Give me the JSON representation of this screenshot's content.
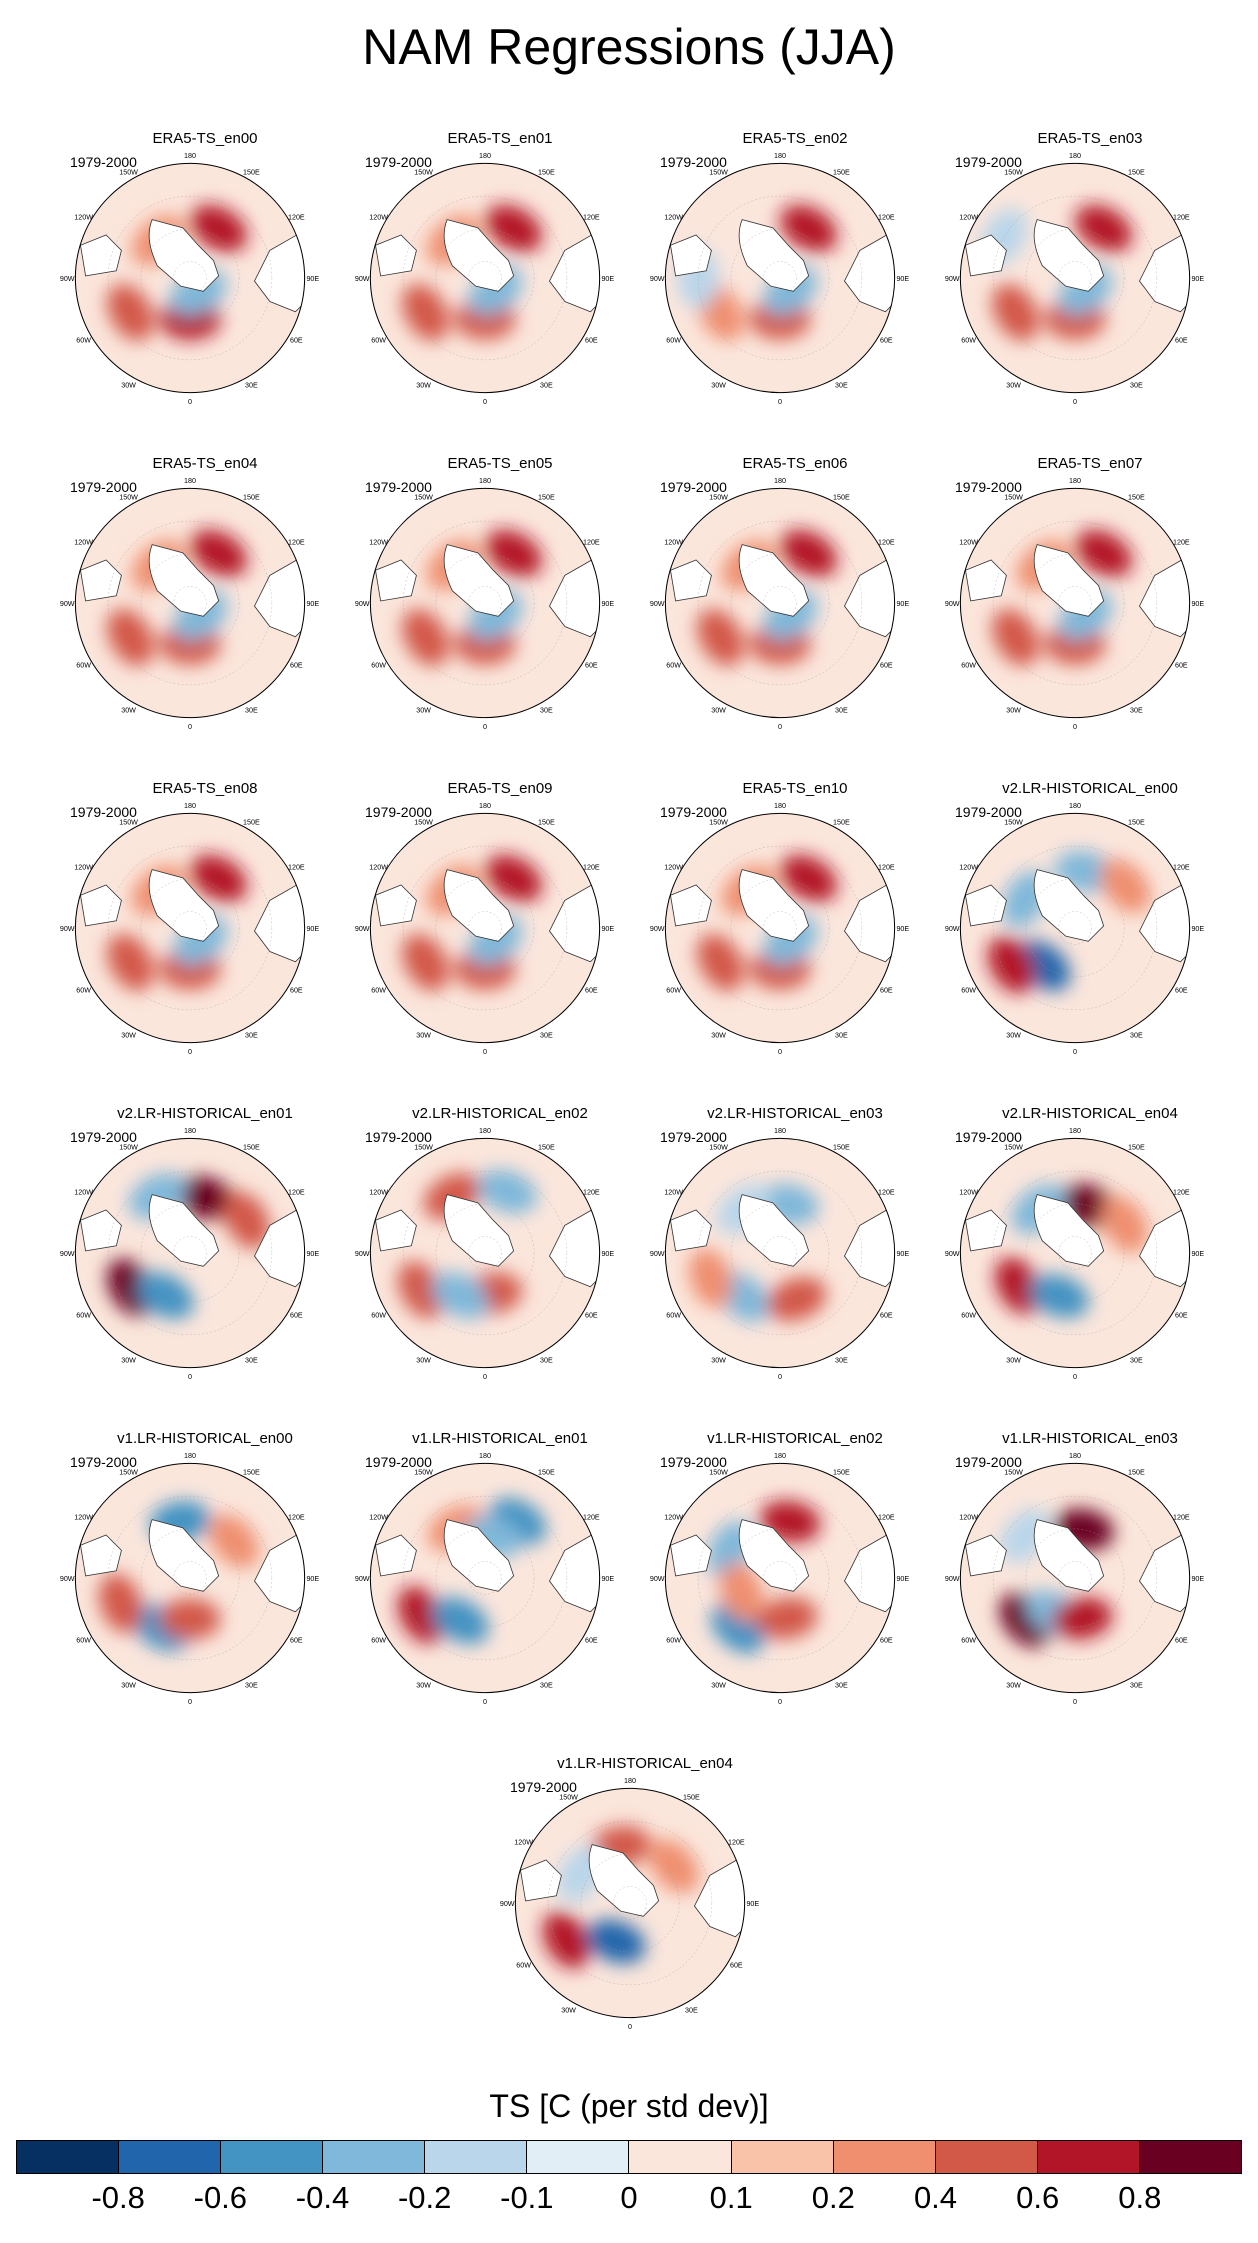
{
  "title": "NAM Regressions (JJA)",
  "period_label": "1979-2000",
  "lon_labels": {
    "l180": "180",
    "l150w": "150W",
    "l150e": "150E",
    "l120w": "120W",
    "l120e": "120E",
    "l90w": "90W",
    "l90e": "90E",
    "l60w": "60W",
    "l60e": "60E",
    "l30w": "30W",
    "l30e": "30E",
    "l0": "0"
  },
  "panels": [
    {
      "title": "ERA5-TS_en00",
      "anomalies": [
        {
          "lon": 150,
          "lat": 55,
          "v": 0.6
        },
        {
          "lon": -60,
          "lat": 48,
          "v": 0.4
        },
        {
          "lon": 0,
          "lat": 65,
          "v": 0.6
        },
        {
          "lon": -140,
          "lat": 60,
          "v": 0.2
        },
        {
          "lon": 30,
          "lat": 80,
          "v": -0.4
        }
      ]
    },
    {
      "title": "ERA5-TS_en01",
      "anomalies": [
        {
          "lon": 150,
          "lat": 55,
          "v": 0.6
        },
        {
          "lon": -60,
          "lat": 48,
          "v": 0.4
        },
        {
          "lon": 0,
          "lat": 65,
          "v": 0.4
        },
        {
          "lon": -140,
          "lat": 60,
          "v": 0.2
        },
        {
          "lon": 40,
          "lat": 80,
          "v": -0.4
        }
      ]
    },
    {
      "title": "ERA5-TS_en02",
      "anomalies": [
        {
          "lon": 150,
          "lat": 55,
          "v": 0.6
        },
        {
          "lon": -60,
          "lat": 48,
          "v": 0.2
        },
        {
          "lon": 0,
          "lat": 65,
          "v": 0.4
        },
        {
          "lon": -90,
          "lat": 40,
          "v": -0.2
        },
        {
          "lon": 40,
          "lat": 80,
          "v": -0.4
        }
      ]
    },
    {
      "title": "ERA5-TS_en03",
      "anomalies": [
        {
          "lon": 150,
          "lat": 55,
          "v": 0.6
        },
        {
          "lon": -60,
          "lat": 48,
          "v": 0.4
        },
        {
          "lon": 0,
          "lat": 65,
          "v": 0.4
        },
        {
          "lon": -120,
          "lat": 40,
          "v": -0.2
        },
        {
          "lon": 40,
          "lat": 80,
          "v": -0.4
        }
      ]
    },
    {
      "title": "ERA5-TS_en04",
      "anomalies": [
        {
          "lon": 150,
          "lat": 55,
          "v": 0.6
        },
        {
          "lon": -60,
          "lat": 48,
          "v": 0.4
        },
        {
          "lon": 0,
          "lat": 65,
          "v": 0.4
        },
        {
          "lon": -140,
          "lat": 60,
          "v": 0.2
        },
        {
          "lon": 40,
          "lat": 80,
          "v": -0.4
        }
      ]
    },
    {
      "title": "ERA5-TS_en05",
      "anomalies": [
        {
          "lon": 150,
          "lat": 55,
          "v": 0.6
        },
        {
          "lon": -60,
          "lat": 48,
          "v": 0.4
        },
        {
          "lon": 0,
          "lat": 65,
          "v": 0.4
        },
        {
          "lon": -140,
          "lat": 60,
          "v": 0.2
        },
        {
          "lon": 40,
          "lat": 80,
          "v": -0.4
        }
      ]
    },
    {
      "title": "ERA5-TS_en06",
      "anomalies": [
        {
          "lon": 150,
          "lat": 55,
          "v": 0.6
        },
        {
          "lon": -60,
          "lat": 48,
          "v": 0.4
        },
        {
          "lon": 0,
          "lat": 65,
          "v": 0.4
        },
        {
          "lon": -140,
          "lat": 60,
          "v": 0.2
        },
        {
          "lon": 40,
          "lat": 80,
          "v": -0.4
        }
      ]
    },
    {
      "title": "ERA5-TS_en07",
      "anomalies": [
        {
          "lon": 150,
          "lat": 55,
          "v": 0.6
        },
        {
          "lon": -60,
          "lat": 48,
          "v": 0.4
        },
        {
          "lon": 0,
          "lat": 65,
          "v": 0.4
        },
        {
          "lon": -140,
          "lat": 60,
          "v": 0.2
        },
        {
          "lon": 40,
          "lat": 80,
          "v": -0.4
        }
      ]
    },
    {
      "title": "ERA5-TS_en08",
      "anomalies": [
        {
          "lon": 150,
          "lat": 55,
          "v": 0.6
        },
        {
          "lon": -60,
          "lat": 48,
          "v": 0.4
        },
        {
          "lon": 0,
          "lat": 65,
          "v": 0.4
        },
        {
          "lon": -140,
          "lat": 60,
          "v": 0.2
        },
        {
          "lon": 40,
          "lat": 80,
          "v": -0.4
        }
      ]
    },
    {
      "title": "ERA5-TS_en09",
      "anomalies": [
        {
          "lon": 150,
          "lat": 55,
          "v": 0.6
        },
        {
          "lon": -60,
          "lat": 48,
          "v": 0.4
        },
        {
          "lon": 0,
          "lat": 65,
          "v": 0.4
        },
        {
          "lon": -140,
          "lat": 60,
          "v": 0.2
        },
        {
          "lon": 40,
          "lat": 80,
          "v": -0.4
        }
      ]
    },
    {
      "title": "ERA5-TS_en10",
      "anomalies": [
        {
          "lon": 150,
          "lat": 55,
          "v": 0.6
        },
        {
          "lon": -60,
          "lat": 48,
          "v": 0.4
        },
        {
          "lon": 0,
          "lat": 65,
          "v": 0.4
        },
        {
          "lon": -140,
          "lat": 60,
          "v": 0.2
        },
        {
          "lon": 40,
          "lat": 80,
          "v": -0.4
        }
      ]
    },
    {
      "title": "v2.LR-HISTORICAL_en00",
      "anomalies": [
        {
          "lon": -40,
          "lat": 60,
          "v": -0.8
        },
        {
          "lon": -60,
          "lat": 45,
          "v": 0.6
        },
        {
          "lon": 170,
          "lat": 55,
          "v": -0.4
        },
        {
          "lon": -120,
          "lat": 55,
          "v": -0.4
        },
        {
          "lon": 130,
          "lat": 50,
          "v": 0.2
        }
      ]
    },
    {
      "title": "v2.LR-HISTORICAL_en01",
      "anomalies": [
        {
          "lon": 165,
          "lat": 55,
          "v": 0.8
        },
        {
          "lon": -60,
          "lat": 48,
          "v": 0.8
        },
        {
          "lon": -30,
          "lat": 60,
          "v": -0.6
        },
        {
          "lon": -150,
          "lat": 50,
          "v": -0.4
        },
        {
          "lon": 120,
          "lat": 50,
          "v": 0.4
        }
      ]
    },
    {
      "title": "v2.LR-HISTORICAL_en02",
      "anomalies": [
        {
          "lon": -150,
          "lat": 50,
          "v": 0.4
        },
        {
          "lon": 160,
          "lat": 50,
          "v": -0.4
        },
        {
          "lon": -60,
          "lat": 45,
          "v": 0.4
        },
        {
          "lon": 10,
          "lat": 65,
          "v": 0.4
        },
        {
          "lon": -30,
          "lat": 60,
          "v": -0.4
        }
      ]
    },
    {
      "title": "v2.LR-HISTORICAL_en03",
      "anomalies": [
        {
          "lon": 170,
          "lat": 60,
          "v": -0.4
        },
        {
          "lon": -40,
          "lat": 55,
          "v": -0.4
        },
        {
          "lon": -70,
          "lat": 45,
          "v": 0.2
        },
        {
          "lon": 20,
          "lat": 60,
          "v": 0.4
        },
        {
          "lon": -140,
          "lat": 55,
          "v": -0.2
        }
      ]
    },
    {
      "title": "v2.LR-HISTORICAL_en04",
      "anomalies": [
        {
          "lon": 165,
          "lat": 60,
          "v": 0.8
        },
        {
          "lon": -60,
          "lat": 50,
          "v": 0.6
        },
        {
          "lon": -20,
          "lat": 62,
          "v": -0.6
        },
        {
          "lon": -140,
          "lat": 55,
          "v": -0.4
        },
        {
          "lon": 120,
          "lat": 55,
          "v": 0.2
        }
      ]
    },
    {
      "title": "v1.LR-HISTORICAL_en00",
      "anomalies": [
        {
          "lon": -170,
          "lat": 55,
          "v": -0.6
        },
        {
          "lon": -30,
          "lat": 55,
          "v": -0.6
        },
        {
          "lon": -70,
          "lat": 45,
          "v": 0.4
        },
        {
          "lon": 0,
          "lat": 65,
          "v": 0.4
        },
        {
          "lon": 130,
          "lat": 55,
          "v": 0.2
        }
      ]
    },
    {
      "title": "v1.LR-HISTORICAL_en01",
      "anomalies": [
        {
          "lon": 150,
          "lat": 50,
          "v": -0.6
        },
        {
          "lon": -60,
          "lat": 45,
          "v": 0.6
        },
        {
          "lon": -30,
          "lat": 60,
          "v": -0.6
        },
        {
          "lon": -150,
          "lat": 55,
          "v": 0.2
        },
        {
          "lon": 170,
          "lat": 65,
          "v": -0.4
        }
      ]
    },
    {
      "title": "v1.LR-HISTORICAL_en02",
      "anomalies": [
        {
          "lon": 170,
          "lat": 55,
          "v": 0.6
        },
        {
          "lon": -40,
          "lat": 50,
          "v": -0.6
        },
        {
          "lon": -120,
          "lat": 55,
          "v": -0.4
        },
        {
          "lon": 10,
          "lat": 65,
          "v": 0.4
        },
        {
          "lon": -70,
          "lat": 65,
          "v": 0.2
        }
      ]
    },
    {
      "title": "v1.LR-HISTORICAL_en03",
      "anomalies": [
        {
          "lon": 170,
          "lat": 60,
          "v": 0.8
        },
        {
          "lon": -50,
          "lat": 50,
          "v": 0.8
        },
        {
          "lon": -30,
          "lat": 65,
          "v": -0.4
        },
        {
          "lon": -130,
          "lat": 50,
          "v": -0.2
        },
        {
          "lon": 10,
          "lat": 65,
          "v": 0.6
        }
      ]
    },
    {
      "title": "v1.LR-HISTORICAL_en04",
      "anomalies": [
        {
          "lon": -170,
          "lat": 55,
          "v": 0.4
        },
        {
          "lon": -60,
          "lat": 45,
          "v": 0.6
        },
        {
          "lon": -20,
          "lat": 65,
          "v": -0.8
        },
        {
          "lon": -120,
          "lat": 55,
          "v": -0.2
        },
        {
          "lon": 130,
          "lat": 55,
          "v": 0.2
        }
      ]
    }
  ],
  "colorbar": {
    "title": "TS [C (per std dev)]",
    "colors": [
      "#053061",
      "#2166ac",
      "#4393c3",
      "#7fb8da",
      "#b9d6ea",
      "#e2eef6",
      "#fbe6dc",
      "#f9c3a9",
      "#ef8f6f",
      "#d25848",
      "#b31528",
      "#6a0021"
    ],
    "ticks": [
      "-0.8",
      "-0.6",
      "-0.4",
      "-0.2",
      "-0.1",
      "0",
      "0.1",
      "0.2",
      "0.4",
      "0.6",
      "0.8"
    ]
  }
}
